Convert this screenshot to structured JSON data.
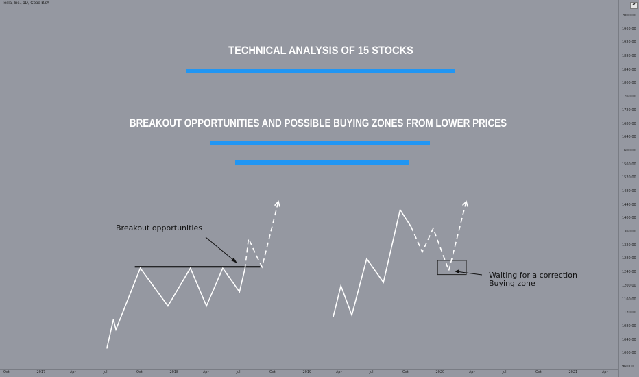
{
  "header": {
    "symbol": "Tesla, Inc., 1D, Cboe BZX"
  },
  "annotations": {
    "title": "TECHNICAL ANALYSIS OF 15 STOCKS",
    "subtitle": "BREAKOUT OPPORTUNITIES AND POSSIBLE BUYING ZONES FROM LOWER PRICES",
    "breakout_label": "Breakout opportunities",
    "correction_label_1": "Waiting for a correction",
    "correction_label_2": "Buying zone"
  },
  "colors": {
    "background": "#9598a1",
    "accent_bar": "#2196f3",
    "line": "#ffffff",
    "resistance": "#000000"
  },
  "chart_data": {
    "type": "line",
    "title": "",
    "xlabel": "",
    "ylabel": "",
    "y_ticks": [
      960,
      1000,
      1040,
      1080,
      1120,
      1160,
      1200,
      1240,
      1280,
      1320,
      1360,
      1400,
      1440,
      1480,
      1520,
      1560,
      1600,
      1640,
      1680,
      1720,
      1760,
      1800,
      1840,
      1880,
      1920,
      1960,
      2000
    ],
    "x_ticks": [
      "Oct",
      "2017",
      "Apr",
      "Jul",
      "Oct",
      "2018",
      "Apr",
      "Jul",
      "Oct",
      "2019",
      "Apr",
      "Jul",
      "Oct",
      "2020",
      "Apr",
      "Jul",
      "Oct",
      "2021",
      "Apr"
    ],
    "ylim": [
      960,
      2000
    ],
    "grid": false,
    "series": [
      {
        "style": "solid",
        "points": [
          [
            "2017-07-05",
            1014
          ],
          [
            "2017-07-23",
            1100
          ],
          [
            "2017-07-30",
            1070
          ],
          [
            "2017-10-05",
            1252
          ],
          [
            "2017-12-20",
            1140
          ],
          [
            "2018-02-20",
            1252
          ],
          [
            "2018-04-05",
            1140
          ],
          [
            "2018-05-20",
            1252
          ],
          [
            "2018-07-05",
            1182
          ],
          [
            "2018-07-20",
            1250
          ]
        ]
      },
      {
        "style": "dashed",
        "points": [
          [
            "2018-07-20",
            1250
          ],
          [
            "2018-07-30",
            1340
          ],
          [
            "2018-08-20",
            1290
          ],
          [
            "2018-09-05",
            1256
          ],
          [
            "2018-10-20",
            1450
          ]
        ]
      },
      {
        "style": "solid",
        "points": [
          [
            "2019-03-20",
            1108
          ],
          [
            "2019-04-10",
            1200
          ],
          [
            "2019-05-10",
            1113
          ],
          [
            "2019-06-20",
            1280
          ],
          [
            "2019-08-05",
            1210
          ],
          [
            "2019-09-20",
            1425
          ],
          [
            "2019-10-20",
            1375
          ]
        ]
      },
      {
        "style": "dashed",
        "points": [
          [
            "2019-10-20",
            1375
          ],
          [
            "2019-11-20",
            1300
          ],
          [
            "2019-12-20",
            1370
          ],
          [
            "2020-02-01",
            1245
          ],
          [
            "2020-03-20",
            1450
          ]
        ]
      }
    ],
    "resistance": {
      "value": 1256,
      "from": "2017-09-20",
      "to": "2018-08-31"
    },
    "buying_zone_box": {
      "y_top": 1275,
      "y_bottom": 1233,
      "from": "2020-01-01",
      "to": "2020-03-20"
    }
  }
}
